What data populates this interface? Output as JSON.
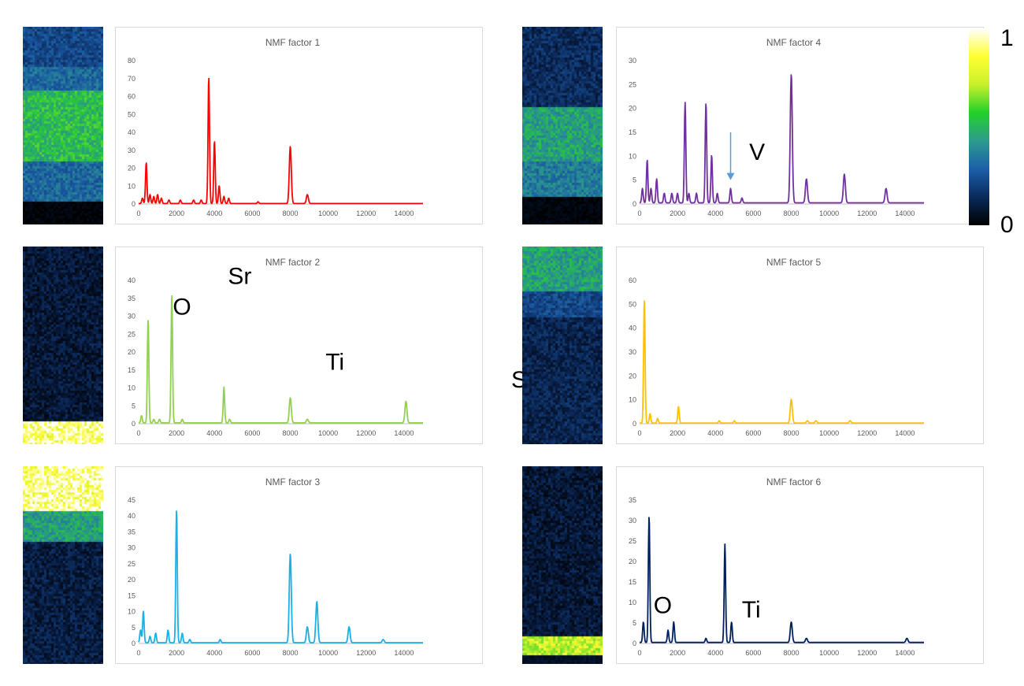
{
  "colorbar": {
    "max_label": "1",
    "min_label": "0",
    "colors": [
      "#000000",
      "#0a2a5a",
      "#1c5fa8",
      "#2e9a8e",
      "#22d12a",
      "#c8f02a",
      "#ffff33",
      "#ffffff"
    ]
  },
  "chart_data": [
    {
      "type": "line",
      "title": "NMF factor 1",
      "color": "#ff0000",
      "xlim": [
        0,
        15000
      ],
      "ylim": [
        0,
        80
      ],
      "xticks": [
        0,
        2000,
        4000,
        6000,
        8000,
        10000,
        12000,
        14000
      ],
      "yticks": [
        0,
        10,
        20,
        30,
        40,
        50,
        60,
        70,
        80
      ],
      "peaks": [
        [
          200,
          3
        ],
        [
          400,
          23
        ],
        [
          600,
          5
        ],
        [
          800,
          4
        ],
        [
          1000,
          5
        ],
        [
          1200,
          3
        ],
        [
          1600,
          2
        ],
        [
          2200,
          2
        ],
        [
          2900,
          2
        ],
        [
          3300,
          2
        ],
        [
          3700,
          71
        ],
        [
          4000,
          35
        ],
        [
          4250,
          10
        ],
        [
          4500,
          4
        ],
        [
          4750,
          3
        ],
        [
          6300,
          1
        ],
        [
          8000,
          32
        ],
        [
          8900,
          5
        ]
      ],
      "map": {
        "bands": [
          [
            0,
            0.2,
            0.3
          ],
          [
            0.2,
            0.32,
            0.4
          ],
          [
            0.32,
            0.68,
            0.62
          ],
          [
            0.68,
            0.88,
            0.4
          ],
          [
            0.88,
            1,
            0.02
          ]
        ]
      },
      "annotations": []
    },
    {
      "type": "line",
      "title": "NMF factor 2",
      "color": "#92d050",
      "xlim": [
        0,
        15000
      ],
      "ylim": [
        0,
        40
      ],
      "xticks": [
        0,
        2000,
        4000,
        6000,
        8000,
        10000,
        12000,
        14000
      ],
      "yticks": [
        0,
        5,
        10,
        15,
        20,
        25,
        30,
        35,
        40
      ],
      "peaks": [
        [
          150,
          2
        ],
        [
          500,
          29
        ],
        [
          800,
          1
        ],
        [
          1100,
          1
        ],
        [
          1750,
          36
        ],
        [
          2300,
          1
        ],
        [
          4500,
          10
        ],
        [
          4800,
          1
        ],
        [
          8000,
          7
        ],
        [
          8900,
          1
        ],
        [
          14100,
          6
        ]
      ],
      "map": {
        "bands": [
          [
            0,
            0.88,
            0.12
          ],
          [
            0.88,
            1,
            0.95
          ]
        ]
      },
      "annotations": [
        {
          "text": "O",
          "x": 0.155,
          "y": 0.34
        },
        {
          "text": "Sr",
          "x": 0.305,
          "y": 0.185
        },
        {
          "text": "Ti",
          "x": 0.57,
          "y": 0.62
        },
        {
          "text": "Sr",
          "x": 1.075,
          "y": 0.71
        }
      ]
    },
    {
      "type": "line",
      "title": "NMF factor 3",
      "color": "#1ab0e8",
      "xlim": [
        0,
        15000
      ],
      "ylim": [
        0,
        45
      ],
      "xticks": [
        0,
        2000,
        4000,
        6000,
        8000,
        10000,
        12000,
        14000
      ],
      "yticks": [
        0,
        5,
        10,
        15,
        20,
        25,
        30,
        35,
        40,
        45
      ],
      "peaks": [
        [
          100,
          4
        ],
        [
          250,
          10
        ],
        [
          600,
          2
        ],
        [
          900,
          3
        ],
        [
          1550,
          4
        ],
        [
          2000,
          42
        ],
        [
          2300,
          3
        ],
        [
          2700,
          1
        ],
        [
          4300,
          1
        ],
        [
          8000,
          28
        ],
        [
          8900,
          5
        ],
        [
          9400,
          13
        ],
        [
          11100,
          5
        ],
        [
          12900,
          1
        ]
      ],
      "map": {
        "bands": [
          [
            0,
            0.22,
            0.95
          ],
          [
            0.22,
            0.38,
            0.55
          ],
          [
            0.38,
            1,
            0.14
          ]
        ]
      },
      "annotations": []
    },
    {
      "type": "line",
      "title": "NMF factor 4",
      "color": "#7030a0",
      "xlim": [
        0,
        15000
      ],
      "ylim": [
        0,
        30
      ],
      "xticks": [
        0,
        2000,
        4000,
        6000,
        8000,
        10000,
        12000,
        14000
      ],
      "yticks": [
        0,
        5,
        10,
        15,
        20,
        25,
        30
      ],
      "peaks": [
        [
          150,
          3
        ],
        [
          400,
          9
        ],
        [
          600,
          3
        ],
        [
          900,
          5
        ],
        [
          1300,
          2
        ],
        [
          1700,
          2
        ],
        [
          2000,
          2
        ],
        [
          2400,
          21
        ],
        [
          2600,
          2
        ],
        [
          3000,
          2
        ],
        [
          3500,
          21
        ],
        [
          3800,
          10
        ],
        [
          4100,
          2
        ],
        [
          4800,
          3
        ],
        [
          5400,
          1
        ],
        [
          8000,
          27
        ],
        [
          8800,
          5
        ],
        [
          10800,
          6
        ],
        [
          13000,
          3
        ]
      ],
      "map": {
        "bands": [
          [
            0,
            0.4,
            0.2
          ],
          [
            0.4,
            0.68,
            0.55
          ],
          [
            0.68,
            0.85,
            0.45
          ],
          [
            0.85,
            1,
            0.03
          ]
        ]
      },
      "annotations": [
        {
          "text": "V",
          "x": 0.36,
          "y": 0.67
        }
      ],
      "arrow": {
        "x": 4800,
        "y_from": 15,
        "y_to": 5
      }
    },
    {
      "type": "line",
      "title": "NMF factor 5",
      "color": "#ffc000",
      "xlim": [
        0,
        15000
      ],
      "ylim": [
        0,
        60
      ],
      "xticks": [
        0,
        2000,
        4000,
        6000,
        8000,
        10000,
        12000,
        14000
      ],
      "yticks": [
        0,
        10,
        20,
        30,
        40,
        50,
        60
      ],
      "peaks": [
        [
          250,
          52
        ],
        [
          550,
          4
        ],
        [
          950,
          2
        ],
        [
          2050,
          7
        ],
        [
          4200,
          1
        ],
        [
          5000,
          1
        ],
        [
          8000,
          10
        ],
        [
          8850,
          1
        ],
        [
          9300,
          1
        ],
        [
          11100,
          1
        ]
      ],
      "map": {
        "bands": [
          [
            0,
            0.22,
            0.55
          ],
          [
            0.22,
            0.35,
            0.3
          ],
          [
            0.35,
            1,
            0.17
          ]
        ]
      },
      "annotations": []
    },
    {
      "type": "line",
      "title": "NMF factor 6",
      "color": "#002060",
      "xlim": [
        0,
        15000
      ],
      "ylim": [
        0,
        35
      ],
      "xticks": [
        0,
        2000,
        4000,
        6000,
        8000,
        10000,
        12000,
        14000
      ],
      "yticks": [
        0,
        5,
        10,
        15,
        20,
        25,
        30,
        35
      ],
      "peaks": [
        [
          200,
          5
        ],
        [
          500,
          31
        ],
        [
          1500,
          3
        ],
        [
          1800,
          5
        ],
        [
          3500,
          1
        ],
        [
          4500,
          24
        ],
        [
          4850,
          5
        ],
        [
          8000,
          5
        ],
        [
          8800,
          1
        ],
        [
          14100,
          1
        ]
      ],
      "map": {
        "bands": [
          [
            0,
            0.86,
            0.12
          ],
          [
            0.86,
            0.95,
            0.82
          ],
          [
            0.95,
            1,
            0.08
          ]
        ]
      },
      "annotations": [
        {
          "text": "O",
          "x": 0.1,
          "y": 0.74
        },
        {
          "text": "Ti",
          "x": 0.34,
          "y": 0.76
        }
      ]
    }
  ]
}
